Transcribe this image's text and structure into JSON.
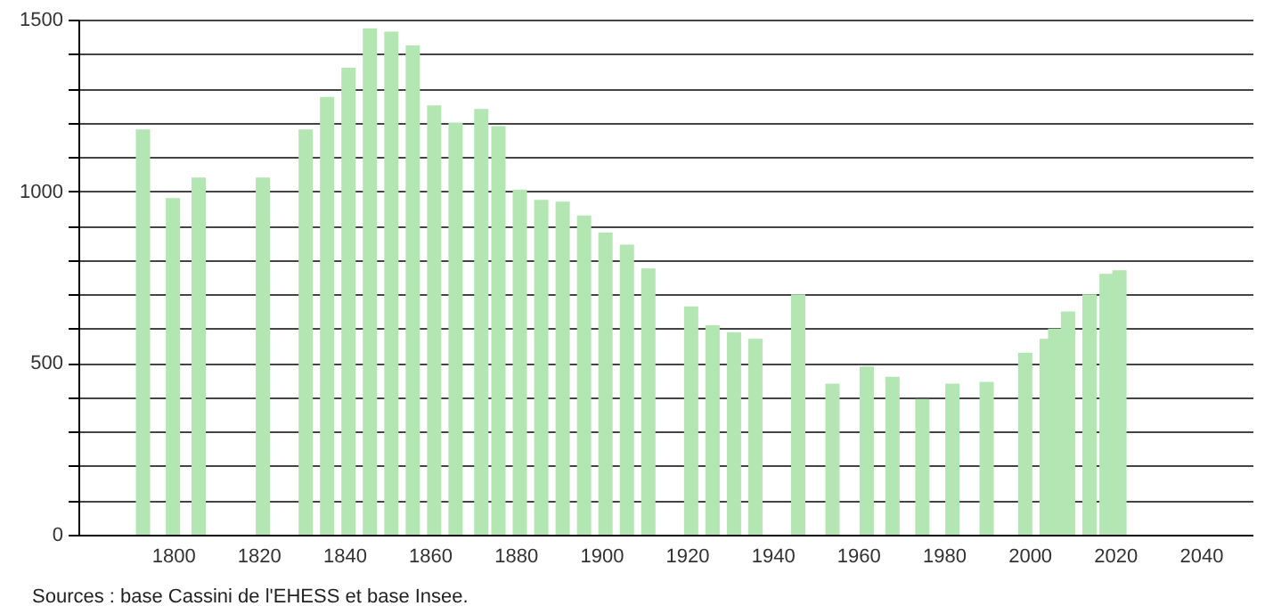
{
  "chart_data": {
    "type": "bar",
    "annotations": [
      "Sources : base Cassini de l'EHESS et base Insee."
    ],
    "x": [
      1793,
      1800,
      1806,
      1821,
      1831,
      1836,
      1841,
      1846,
      1851,
      1856,
      1861,
      1866,
      1872,
      1876,
      1881,
      1886,
      1891,
      1896,
      1901,
      1906,
      1911,
      1921,
      1926,
      1931,
      1936,
      1946,
      1954,
      1962,
      1968,
      1975,
      1982,
      1990,
      1999,
      2004,
      2006,
      2009,
      2014,
      2018,
      2021
    ],
    "values": [
      1180,
      980,
      1040,
      1040,
      1180,
      1275,
      1360,
      1475,
      1465,
      1425,
      1250,
      1200,
      1240,
      1190,
      1005,
      975,
      970,
      930,
      880,
      845,
      775,
      665,
      610,
      590,
      570,
      700,
      440,
      490,
      460,
      395,
      440,
      445,
      530,
      570,
      600,
      650,
      700,
      760,
      770
    ],
    "color": "#b3e6b3",
    "xlim": [
      1780,
      2050
    ],
    "xticks": [
      1800,
      1820,
      1840,
      1860,
      1880,
      1900,
      1920,
      1940,
      1960,
      1980,
      2000,
      2020,
      2040
    ],
    "ylim": [
      0,
      1500
    ],
    "yticks": [
      0,
      {
        "value": 100,
        "label": null
      },
      {
        "value": 200,
        "label": null
      },
      {
        "value": 300,
        "label": null
      },
      {
        "value": 400,
        "label": null
      },
      500,
      {
        "value": 600,
        "label": null
      },
      {
        "value": 700,
        "label": null
      },
      {
        "value": 800,
        "label": null
      },
      {
        "value": 900,
        "label": null
      },
      1000,
      {
        "value": 1100,
        "label": null
      },
      {
        "value": 1200,
        "label": null
      },
      {
        "value": 1300,
        "label": null
      },
      {
        "value": 1400,
        "label": null
      },
      1500
    ],
    "grid": "y"
  }
}
